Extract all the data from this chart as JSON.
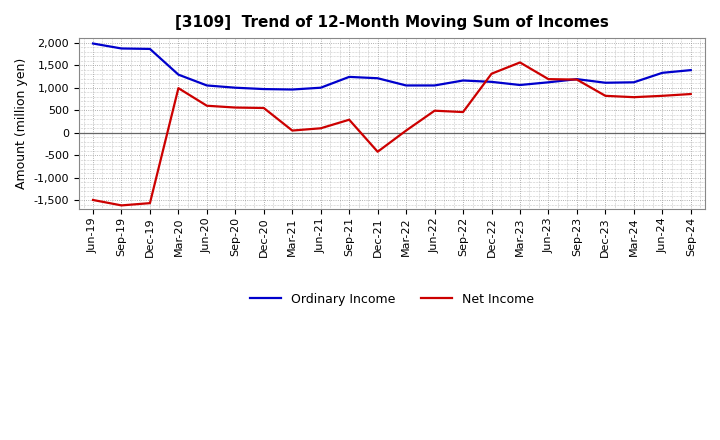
{
  "title": "[3109]  Trend of 12-Month Moving Sum of Incomes",
  "ylabel": "Amount (million yen)",
  "background_color": "#ffffff",
  "plot_bg_color": "#ffffff",
  "grid_color": "#999999",
  "x_labels": [
    "Jun-19",
    "Sep-19",
    "Dec-19",
    "Mar-20",
    "Jun-20",
    "Sep-20",
    "Dec-20",
    "Mar-21",
    "Jun-21",
    "Sep-21",
    "Dec-21",
    "Mar-22",
    "Jun-22",
    "Sep-22",
    "Dec-22",
    "Mar-23",
    "Jun-23",
    "Sep-23",
    "Dec-23",
    "Mar-24",
    "Jun-24",
    "Sep-24"
  ],
  "ordinary_income": [
    1980,
    1870,
    1860,
    1290,
    1050,
    1000,
    970,
    960,
    1000,
    1240,
    1210,
    1050,
    1050,
    1160,
    1130,
    1060,
    1120,
    1190,
    1110,
    1120,
    1330,
    1390
  ],
  "net_income": [
    -1490,
    -1610,
    -1560,
    990,
    600,
    560,
    550,
    50,
    100,
    290,
    -420,
    50,
    490,
    460,
    1310,
    1560,
    1190,
    1180,
    820,
    790,
    820,
    860
  ],
  "ordinary_color": "#0000cc",
  "net_color": "#cc0000",
  "ylim_min": -1700,
  "ylim_max": 2100,
  "yticks": [
    -1500,
    -1000,
    -500,
    0,
    500,
    1000,
    1500,
    2000
  ],
  "line_width": 1.6,
  "title_fontsize": 11,
  "tick_fontsize": 8,
  "ylabel_fontsize": 9,
  "legend_fontsize": 9
}
